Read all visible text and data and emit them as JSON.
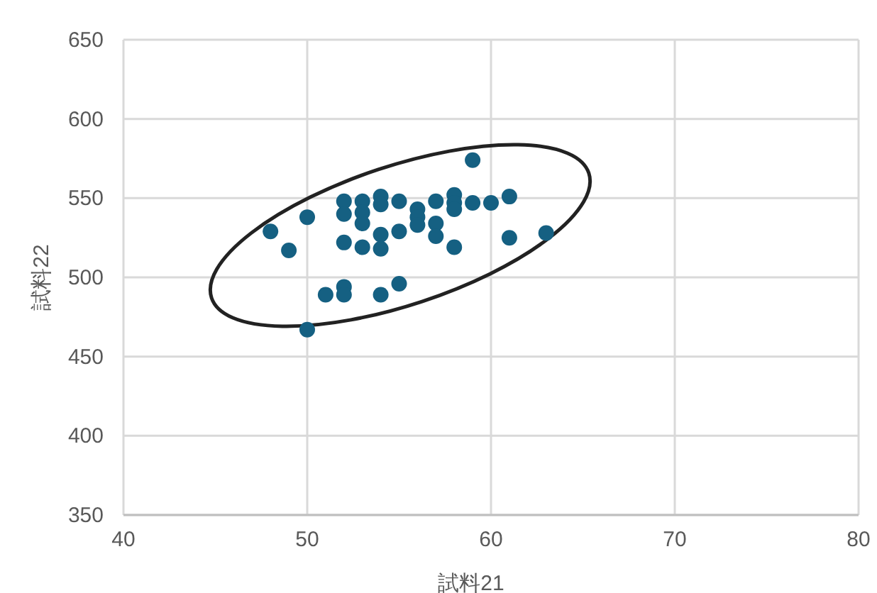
{
  "chart_data": {
    "type": "scatter",
    "xlabel": "試料21",
    "ylabel": "試料22",
    "x": [
      59,
      48,
      49,
      50,
      50,
      52,
      52,
      52,
      52,
      52,
      51,
      53,
      53,
      53,
      53,
      54,
      54,
      54,
      54,
      54,
      55,
      55,
      55,
      56,
      56,
      56,
      57,
      57,
      57,
      58,
      58,
      58,
      58,
      59,
      60,
      61,
      61,
      63
    ],
    "series": [
      {
        "color": "#156082",
        "values": [
          574,
          529,
          517,
          538,
          467,
          548,
          540,
          522,
          494,
          489,
          489,
          548,
          541,
          534,
          519,
          551,
          546,
          527,
          518,
          489,
          548,
          529,
          496,
          543,
          538,
          533,
          548,
          534,
          526,
          552,
          547,
          543,
          519,
          547,
          547,
          551,
          525,
          528
        ]
      }
    ],
    "xlim": [
      40,
      80
    ],
    "xticks": [
      40,
      50,
      60,
      70,
      80
    ],
    "ylim": [
      350,
      650
    ],
    "yticks": [
      350,
      400,
      450,
      500,
      550,
      600,
      650
    ],
    "grid": true,
    "marker": "circle"
  }
}
